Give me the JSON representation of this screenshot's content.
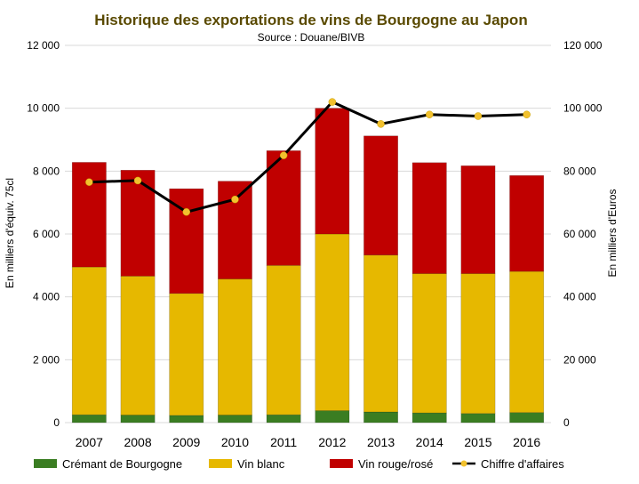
{
  "chart_data": {
    "type": "bar",
    "stacked": true,
    "title": "Historique des exportations de vins de Bourgogne au Japon",
    "subtitle": "Source : Douane/BIVB",
    "categories": [
      "2007",
      "2008",
      "2009",
      "2010",
      "2011",
      "2012",
      "2013",
      "2014",
      "2015",
      "2016"
    ],
    "ylabel": "En milliers d'équiv. 75cl",
    "y2label": "En milliers d'Euros",
    "ylim": [
      0,
      12000
    ],
    "y2lim": [
      0,
      120000
    ],
    "yticks": [
      "0",
      "2 000",
      "4 000",
      "6 000",
      "8 000",
      "10 000",
      "12 000"
    ],
    "y2ticks": [
      "0",
      "20 000",
      "40 000",
      "60 000",
      "80 000",
      "100 000",
      "120 000"
    ],
    "grid": true,
    "legend_position": "bottom",
    "series": [
      {
        "name": "Crémant de Bourgogne",
        "type": "bar",
        "axis": "left",
        "color": "#3a7d22",
        "values": [
          250,
          240,
          230,
          240,
          250,
          380,
          340,
          310,
          290,
          320
        ]
      },
      {
        "name": "Vin blanc",
        "type": "bar",
        "axis": "left",
        "color": "#e6b800",
        "values": [
          4700,
          4420,
          3880,
          4330,
          4750,
          5620,
          4990,
          4430,
          4450,
          4490
        ]
      },
      {
        "name": "Vin rouge/rosé",
        "type": "bar",
        "axis": "left",
        "color": "#c00000",
        "values": [
          3330,
          3370,
          3330,
          3110,
          3650,
          4000,
          3790,
          3530,
          3430,
          3050
        ]
      },
      {
        "name": "Chiffre d'affaires",
        "type": "line",
        "axis": "right",
        "color": "#000000",
        "marker_color": "#f2c12e",
        "values": [
          76500,
          77000,
          67000,
          71000,
          85000,
          102000,
          95000,
          98000,
          97500,
          98000
        ]
      }
    ]
  }
}
